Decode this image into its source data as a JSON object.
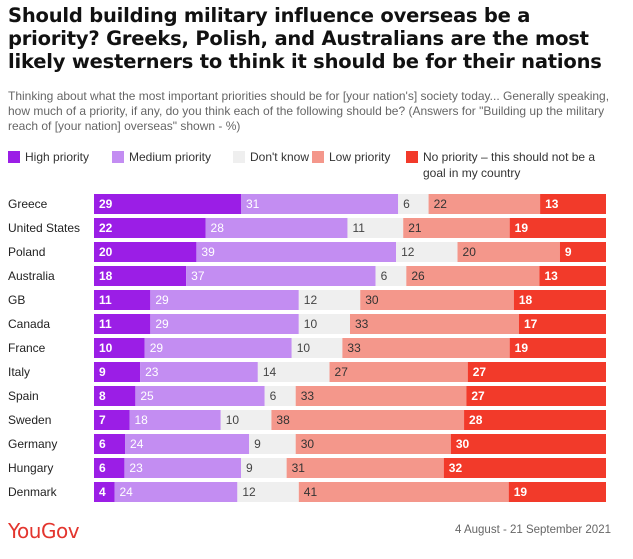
{
  "title": "Should building military influence overseas be a priority? Greeks, Polish, and Australians are the most likely westerners to think it should be for their nations",
  "subtitle": "Thinking about what the most important priorities should be for [your nation's] society today... Generally speaking, how much of a priority, if any, do you think each of the following should be? (Answers for \"Building up the military reach of [your nation] overseas\" shown - %)",
  "legend": [
    {
      "label": "High priority",
      "color": "#9b1ee6"
    },
    {
      "label": "Medium priority",
      "color": "#c38df2"
    },
    {
      "label": "Don't know",
      "color": "#efefef"
    },
    {
      "label": "Low priority",
      "color": "#f4978b"
    },
    {
      "label": "No priority – this should not be a goal in my country",
      "color": "#f23a2a"
    }
  ],
  "chart_data": {
    "type": "bar",
    "orientation": "horizontal",
    "stacked": true,
    "categories": [
      "Greece",
      "United States",
      "Poland",
      "Australia",
      "GB",
      "Canada",
      "France",
      "Italy",
      "Spain",
      "Sweden",
      "Germany",
      "Hungary",
      "Denmark"
    ],
    "series": [
      {
        "name": "High priority",
        "color": "#9b1ee6",
        "values": [
          29,
          22,
          20,
          18,
          11,
          11,
          10,
          9,
          8,
          7,
          6,
          6,
          4
        ]
      },
      {
        "name": "Medium priority",
        "color": "#c38df2",
        "values": [
          31,
          28,
          39,
          37,
          29,
          29,
          29,
          23,
          25,
          18,
          24,
          23,
          24
        ]
      },
      {
        "name": "Don't know",
        "color": "#efefef",
        "values": [
          6,
          11,
          12,
          6,
          12,
          10,
          10,
          14,
          6,
          10,
          9,
          9,
          12
        ]
      },
      {
        "name": "Low priority",
        "color": "#f4978b",
        "values": [
          22,
          21,
          20,
          26,
          30,
          33,
          33,
          27,
          33,
          38,
          30,
          31,
          41
        ]
      },
      {
        "name": "No priority – this should not be a goal in my country",
        "color": "#f23a2a",
        "values": [
          13,
          19,
          9,
          13,
          18,
          17,
          19,
          27,
          27,
          28,
          30,
          32,
          19
        ]
      }
    ],
    "xlim": [
      0,
      100
    ],
    "units": "%"
  },
  "footer": {
    "brand": "YouGov",
    "date_range": "4 August - 21 September 2021"
  }
}
